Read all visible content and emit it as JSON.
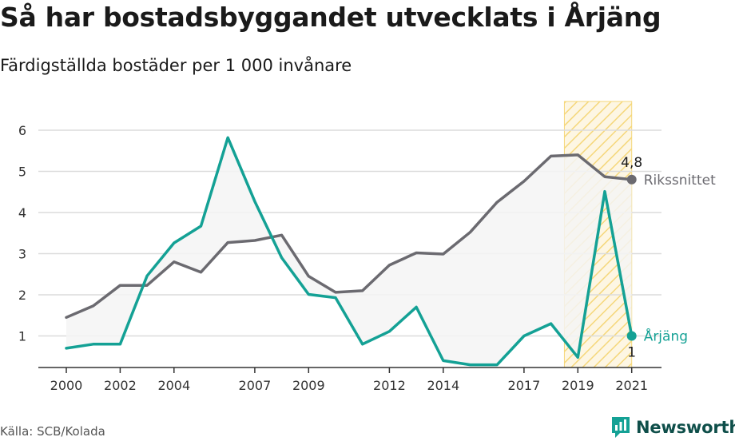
{
  "title": "Så har bostadsbyggandet utvecklats i Årjäng",
  "subtitle": "Färdigställda bostäder per 1 000 invånare",
  "source": "Källa: SCB/Kolada",
  "brand": "Newsworthy",
  "colors": {
    "riket": "#6b6a70",
    "kommun": "#14a195",
    "highlight": "#f5d77a",
    "brand": "#0f4f4a"
  },
  "chart_data": {
    "type": "line",
    "x": [
      2000,
      2001,
      2002,
      2003,
      2004,
      2005,
      2006,
      2007,
      2008,
      2009,
      2010,
      2011,
      2012,
      2013,
      2014,
      2015,
      2016,
      2017,
      2018,
      2019,
      2020,
      2021
    ],
    "x_ticks": [
      "2000",
      "2002",
      "2004",
      "2007",
      "2009",
      "2012",
      "2014",
      "2017",
      "2019",
      "2021"
    ],
    "y_ticks": [
      "1",
      "2",
      "3",
      "4",
      "5",
      "6"
    ],
    "ylim": [
      0.25,
      6.3
    ],
    "grid": true,
    "highlight_range": [
      2018.5,
      2021
    ],
    "series": [
      {
        "name": "Rikssnittet",
        "color": "#6b6a70",
        "values": [
          1.45,
          1.73,
          2.23,
          2.23,
          2.8,
          2.55,
          3.27,
          3.32,
          3.45,
          2.45,
          2.06,
          2.1,
          2.72,
          3.02,
          2.99,
          3.52,
          4.25,
          4.76,
          5.37,
          5.4,
          4.87,
          4.8
        ],
        "end_label": "4,8"
      },
      {
        "name": "Årjäng",
        "color": "#14a195",
        "values": [
          0.7,
          0.8,
          0.8,
          2.46,
          3.26,
          3.67,
          5.82,
          4.27,
          2.9,
          2.01,
          1.93,
          0.8,
          1.11,
          1.7,
          0.4,
          0.3,
          0.3,
          1.0,
          1.3,
          0.48,
          4.51,
          1.0
        ],
        "end_label": "1"
      }
    ]
  }
}
